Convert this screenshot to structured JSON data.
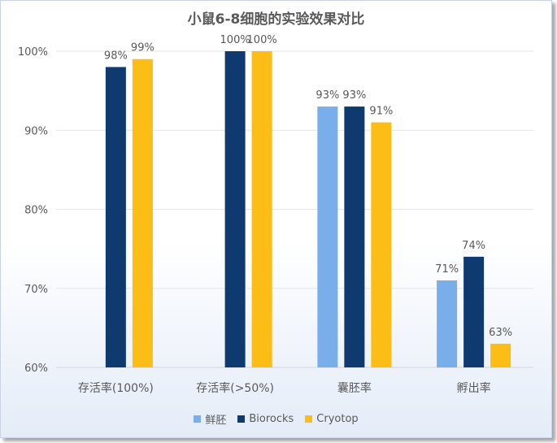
{
  "chart_data": {
    "type": "bar",
    "title": "小鼠6-8细胞的实验效果对比",
    "xlabel": "",
    "ylabel": "",
    "categories": [
      "存活率(100%)",
      "存活率(>50%)",
      "囊胚率",
      "孵出率"
    ],
    "series": [
      {
        "name": "鲜胚",
        "color": "#7aaeea",
        "values": [
          null,
          null,
          93,
          71
        ]
      },
      {
        "name": "Biorocks",
        "color": "#0e3a70",
        "values": [
          98,
          100,
          93,
          74
        ]
      },
      {
        "name": "Cryotop",
        "color": "#fbbd16",
        "values": [
          99,
          100,
          91,
          63
        ]
      }
    ],
    "ylim": [
      60,
      100
    ],
    "yticks": [
      60,
      70,
      80,
      90,
      100
    ],
    "ytick_labels": [
      "60%",
      "70%",
      "80%",
      "90%",
      "100%"
    ],
    "data_label_suffix": "%",
    "grid": true,
    "legend_position": "bottom"
  }
}
